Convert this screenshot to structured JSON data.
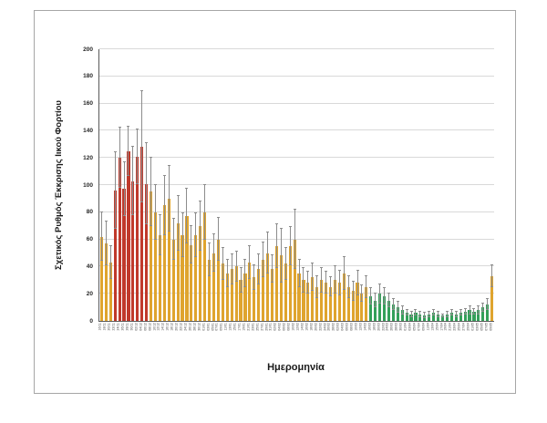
{
  "chart_data": {
    "type": "bar",
    "title": "",
    "xlabel": "Ημερομηνία",
    "ylabel": "Σχετικός Ρυθμός Έκκρισης Ιικού Φορτίου",
    "ylim": [
      0,
      200
    ],
    "yticks": [
      0,
      20,
      40,
      60,
      80,
      100,
      120,
      140,
      160,
      180,
      200
    ],
    "grid": "horizontal",
    "legend": "none",
    "error_bars": true,
    "palette": {
      "a": "#DFA42E",
      "r": "#C0392B",
      "g": "#33A059"
    },
    "error_bar_color": "#8c8c8c",
    "categories": [
      "16/11",
      "18/11",
      "20/11",
      "22/11",
      "24/11",
      "26/11",
      "28/11",
      "30/11",
      "02/12",
      "04/12",
      "06/12",
      "08/12",
      "10/12",
      "12/12",
      "14/12",
      "16/12",
      "18/12",
      "20/12",
      "22/12",
      "24/12",
      "26/12",
      "28/12",
      "30/12",
      "01/01",
      "03/01",
      "05/01",
      "07/01",
      "09/01",
      "11/01",
      "13/01",
      "15/01",
      "17/01",
      "19/01",
      "21/01",
      "23/01",
      "25/01",
      "27/01",
      "29/01",
      "31/01",
      "02/02",
      "04/02",
      "06/02",
      "08/02",
      "10/02",
      "12/02",
      "14/02",
      "16/02",
      "18/02",
      "20/02",
      "22/02",
      "24/02",
      "26/02",
      "28/02",
      "02/03",
      "04/03",
      "06/03",
      "08/03",
      "10/03",
      "12/03",
      "14/03",
      "16/03",
      "18/03",
      "20/03",
      "22/03",
      "24/03",
      "26/03",
      "28/03",
      "30/03",
      "01/04",
      "03/04",
      "05/04",
      "07/04",
      "09/04",
      "11/04",
      "13/04",
      "15/04",
      "17/04",
      "19/04",
      "21/04",
      "23/04",
      "25/04",
      "27/04",
      "29/04",
      "01/05",
      "03/05",
      "05/05",
      "07/05",
      "09/05"
    ],
    "values": [
      62,
      57,
      43,
      96,
      120,
      97,
      125,
      103,
      121,
      128,
      101,
      95,
      80,
      63,
      85,
      90,
      60,
      72,
      63,
      77,
      56,
      63,
      70,
      80,
      45,
      50,
      60,
      42,
      35,
      38,
      40,
      30,
      35,
      43,
      32,
      38,
      45,
      50,
      38,
      55,
      48,
      42,
      55,
      60,
      35,
      30,
      28,
      32,
      25,
      30,
      28,
      25,
      30,
      28,
      35,
      25,
      22,
      28,
      20,
      25,
      18,
      15,
      20,
      18,
      15,
      12,
      10,
      8,
      6,
      5,
      6,
      5,
      4,
      5,
      6,
      5,
      4,
      5,
      6,
      5,
      6,
      7,
      8,
      7,
      8,
      10,
      12,
      33
    ],
    "errors": [
      18,
      16,
      12,
      28,
      22,
      20,
      18,
      25,
      20,
      41,
      30,
      25,
      20,
      15,
      22,
      24,
      15,
      20,
      16,
      20,
      14,
      16,
      18,
      20,
      12,
      14,
      16,
      12,
      10,
      11,
      11,
      9,
      10,
      12,
      9,
      11,
      13,
      15,
      10,
      16,
      20,
      12,
      14,
      22,
      10,
      9,
      8,
      10,
      8,
      9,
      8,
      7,
      10,
      9,
      12,
      8,
      7,
      9,
      6,
      8,
      6,
      5,
      7,
      6,
      5,
      4,
      4,
      3,
      2,
      2,
      2,
      2,
      2,
      2,
      2,
      2,
      1,
      2,
      2,
      2,
      2,
      2,
      3,
      2,
      3,
      3,
      4,
      8
    ],
    "bar_color_keys": [
      "a",
      "a",
      "a",
      "r",
      "r",
      "r",
      "r",
      "r",
      "r",
      "r",
      "r",
      "a",
      "a",
      "a",
      "a",
      "a",
      "a",
      "a",
      "a",
      "a",
      "a",
      "a",
      "a",
      "a",
      "a",
      "a",
      "a",
      "a",
      "a",
      "a",
      "a",
      "a",
      "a",
      "a",
      "a",
      "a",
      "a",
      "a",
      "a",
      "a",
      "a",
      "a",
      "a",
      "a",
      "a",
      "a",
      "a",
      "a",
      "a",
      "a",
      "a",
      "a",
      "a",
      "a",
      "a",
      "a",
      "a",
      "a",
      "a",
      "a",
      "g",
      "g",
      "g",
      "g",
      "g",
      "g",
      "g",
      "g",
      "g",
      "g",
      "g",
      "g",
      "g",
      "g",
      "g",
      "g",
      "g",
      "g",
      "g",
      "g",
      "g",
      "g",
      "g",
      "g",
      "g",
      "g",
      "g",
      "a"
    ]
  }
}
